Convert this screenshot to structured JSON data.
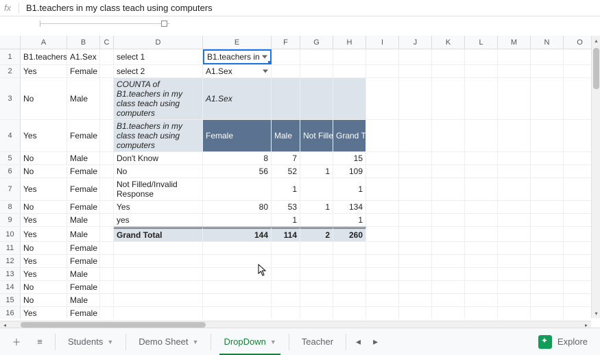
{
  "formula_bar": {
    "fx": "fx",
    "value": "B1.teachers in my class teach using computers"
  },
  "columns": [
    "A",
    "B",
    "C",
    "D",
    "E",
    "F",
    "G",
    "H",
    "I",
    "J",
    "K",
    "L",
    "M",
    "N",
    "O"
  ],
  "col_widths": {
    "A": 68,
    "B": 48,
    "C": 20,
    "D": 130,
    "E": 100,
    "F": 42,
    "G": 48,
    "H": 48,
    "I": 48,
    "J": 48,
    "K": 48,
    "L": 48,
    "M": 48,
    "N": 48,
    "O": 48
  },
  "raw_rows": [
    {
      "n": 1,
      "A": "B1.teachers",
      "B": "A1.Sex",
      "D": "select 1",
      "E": "B1.teachers in",
      "E_dd": true,
      "active": "E"
    },
    {
      "n": 2,
      "A": "Yes",
      "B": "Female",
      "D": "select 2",
      "E": "A1.Sex",
      "E_dd": true
    },
    {
      "n": 3,
      "A": "No",
      "B": "Male",
      "D": "COUNTA of B1.teachers in my class teach using computers",
      "D_wrap": true,
      "D_italic": true,
      "E": "A1.Sex",
      "E_italic": true,
      "pivot_header": true
    },
    {
      "n": 4,
      "A": "Yes",
      "B": "Female",
      "D": "B1.teachers in my class teach using computers",
      "D_wrap": true,
      "D_italic": true,
      "E": "Female",
      "F": "Male",
      "G": "Not Fille",
      "H": "Grand T",
      "col_header": true
    },
    {
      "n": 5,
      "A": "No",
      "B": "Male",
      "D": "Don't Know",
      "E": "8",
      "F": "7",
      "H": "15"
    },
    {
      "n": 6,
      "A": "No",
      "B": "Female",
      "D": "No",
      "E": "56",
      "F": "52",
      "G": "1",
      "H": "109"
    },
    {
      "n": 7,
      "A": "Yes",
      "B": "Female",
      "D": "Not Filled/Invalid Response",
      "D_wrap": true,
      "F": "1",
      "H": "1"
    },
    {
      "n": 8,
      "A": "No",
      "B": "Female",
      "D": "Yes",
      "E": "80",
      "F": "53",
      "G": "1",
      "H": "134"
    },
    {
      "n": 9,
      "A": "Yes",
      "B": "Male",
      "D": "yes",
      "F": "1",
      "H": "1"
    },
    {
      "n": 10,
      "A": "Yes",
      "B": "Male",
      "D": "Grand Total",
      "D_bold": true,
      "E": "144",
      "F": "114",
      "G": "2",
      "H": "260",
      "grand_total": true
    },
    {
      "n": 11,
      "A": "No",
      "B": "Female"
    },
    {
      "n": 12,
      "A": "Yes",
      "B": "Female"
    },
    {
      "n": 13,
      "A": "Yes",
      "B": "Male"
    },
    {
      "n": 14,
      "A": "No",
      "B": "Female"
    },
    {
      "n": 15,
      "A": "No",
      "B": "Male"
    },
    {
      "n": 16,
      "A": "Yes",
      "B": "Female",
      "clipped": true
    }
  ],
  "pivot_style": {
    "header_bg": "#dde3ea",
    "col_header_bg": "#5b7290",
    "col_header_fg": "#ffffff",
    "total_bg": "#dde3ea",
    "selection_border": "#1a73e8"
  },
  "tabs": {
    "items": [
      {
        "label": "Students",
        "active": false
      },
      {
        "label": "Demo Sheet",
        "active": false
      },
      {
        "label": "DropDown",
        "active": true
      },
      {
        "label": "Teacher",
        "active": false,
        "clipped": true
      }
    ],
    "explore": "Explore"
  }
}
